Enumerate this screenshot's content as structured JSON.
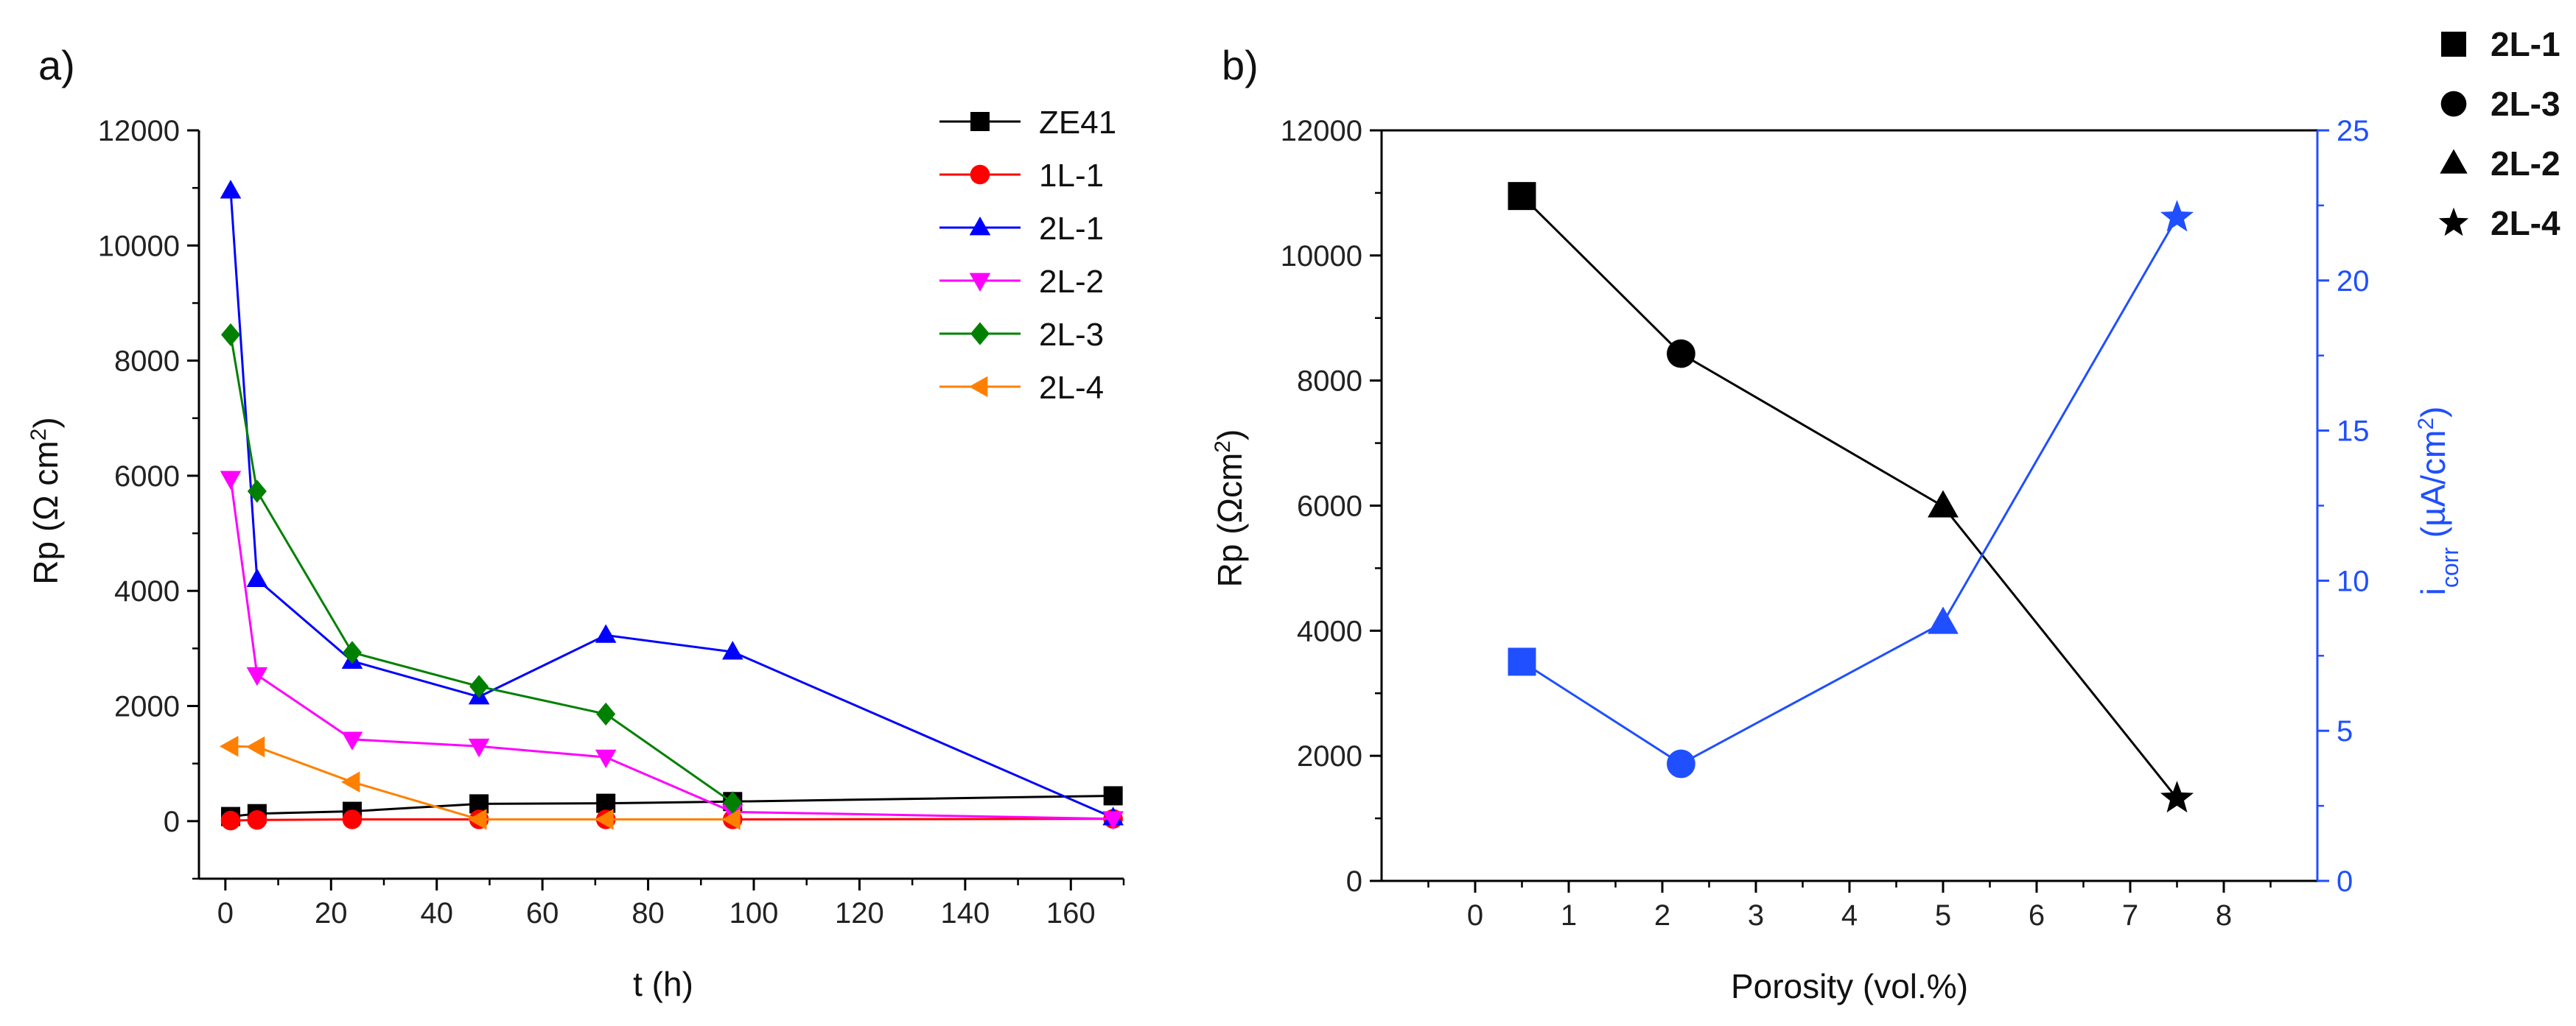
{
  "chart_data": [
    {
      "type": "line",
      "panel_label": "a)",
      "xlabel": "t (h)",
      "ylabel": {
        "main": "Rp (Ω cm",
        "sup": "2",
        "close": ")"
      },
      "xlim": [
        -5,
        170
      ],
      "ylim": [
        -1000,
        12000
      ],
      "xticks": [
        "0",
        "20",
        "40",
        "60",
        "80",
        "100",
        "120",
        "140",
        "160"
      ],
      "yticks": [
        "0",
        "2000",
        "4000",
        "6000",
        "8000",
        "10000",
        "12000"
      ],
      "series": [
        {
          "name": "ZE41",
          "color": "#000000",
          "marker": "square",
          "x": [
            1,
            6,
            24,
            48,
            72,
            96,
            168
          ],
          "y": [
            80,
            130,
            170,
            300,
            310,
            340,
            440
          ]
        },
        {
          "name": "1L-1",
          "color": "#ff0000",
          "marker": "circle",
          "x": [
            1,
            6,
            24,
            48,
            72,
            96,
            168
          ],
          "y": [
            10,
            20,
            30,
            30,
            30,
            30,
            40
          ]
        },
        {
          "name": "2L-1",
          "color": "#0000ff",
          "marker": "triangle-up",
          "x": [
            1,
            6,
            24,
            48,
            72,
            96,
            168
          ],
          "y": [
            10950,
            4200,
            2780,
            2160,
            3230,
            2940,
            60
          ]
        },
        {
          "name": "2L-2",
          "color": "#ff00ff",
          "marker": "triangle-down",
          "x": [
            1,
            6,
            24,
            48,
            72,
            96,
            168
          ],
          "y": [
            5950,
            2540,
            1420,
            1300,
            1110,
            160,
            40
          ]
        },
        {
          "name": "2L-3",
          "color": "#008000",
          "marker": "diamond",
          "x": [
            1,
            6,
            24,
            48,
            72,
            96
          ],
          "y": [
            8450,
            5730,
            2930,
            2340,
            1860,
            320
          ]
        },
        {
          "name": "2L-4",
          "color": "#ff8000",
          "marker": "triangle-left",
          "x": [
            1,
            6,
            24,
            48,
            72,
            96
          ],
          "y": [
            1300,
            1290,
            680,
            30,
            30,
            30
          ]
        }
      ]
    },
    {
      "type": "line",
      "panel_label": "b)",
      "xlabel": "Porosity (vol.%)",
      "ylabel": {
        "main": "Rp (Ωcm",
        "sup": "2",
        "close": ")"
      },
      "y2label": {
        "main": "i",
        "sub": "corr",
        "rest": " (µA/cm",
        "sup": "2",
        "close": ")"
      },
      "xlim": [
        -1,
        9
      ],
      "ylim": [
        0,
        12000
      ],
      "y2lim": [
        0,
        25
      ],
      "xticks": [
        "0",
        "1",
        "2",
        "3",
        "4",
        "5",
        "6",
        "7",
        "8"
      ],
      "yticks": [
        "0",
        "2000",
        "4000",
        "6000",
        "8000",
        "10000",
        "12000"
      ],
      "y2ticks": [
        "0",
        "5",
        "10",
        "15",
        "20",
        "25"
      ],
      "series": [
        {
          "name": "Rp",
          "axis": "left",
          "color": "#000000",
          "x": [
            0.5,
            2.2,
            5.0,
            7.5
          ],
          "y": [
            10950,
            8430,
            5990,
            1320
          ],
          "markers": [
            "square",
            "circle",
            "triangle-up",
            "star"
          ]
        },
        {
          "name": "icorr",
          "axis": "right",
          "color": "#1f4fff",
          "x": [
            0.5,
            2.2,
            5.0,
            7.5
          ],
          "y": [
            7.3,
            3.9,
            8.6,
            22.1
          ],
          "markers": [
            "square",
            "circle",
            "triangle-up",
            "star"
          ]
        }
      ],
      "marker_legend": [
        {
          "label": "2L-1",
          "marker": "square"
        },
        {
          "label": "2L-3",
          "marker": "circle"
        },
        {
          "label": "2L-2",
          "marker": "triangle-up"
        },
        {
          "label": "2L-4",
          "marker": "star"
        }
      ]
    }
  ]
}
